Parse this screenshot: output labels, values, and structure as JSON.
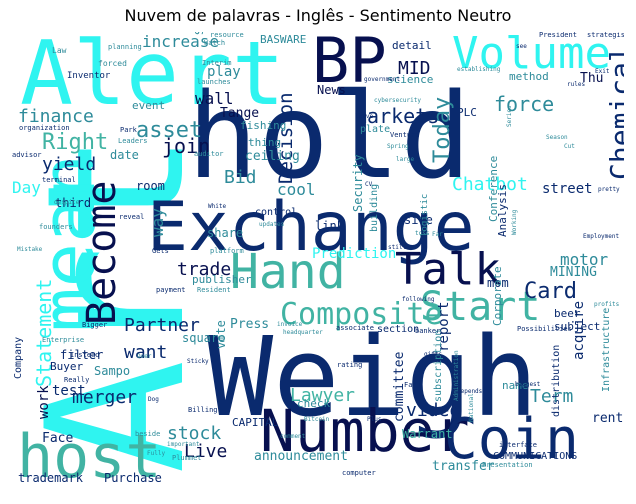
{
  "title": "Nuvem de palavras - Inglês - Sentimento Neutro",
  "palette": {
    "navy": "#0a2a6e",
    "dark": "#07104f",
    "teal": "#41b3a3",
    "cyan": "#2ff4f0",
    "sea": "#2e8b9a"
  },
  "words": [
    {
      "text": "Art",
      "color": "#2ff4f0"
    },
    {
      "text": "hold",
      "color": "#0a2a6e"
    },
    {
      "text": "Exchange",
      "color": "#0a2a6e"
    },
    {
      "text": "Weigh",
      "color": "#0a2a6e"
    },
    {
      "text": "Alert",
      "color": "#2ff4f0"
    },
    {
      "text": "BP",
      "color": "#07104f"
    },
    {
      "text": "Volume",
      "color": "#2ff4f0"
    },
    {
      "text": "mean",
      "color": "#2ff4f0"
    },
    {
      "text": "Hand",
      "color": "#41b3a3"
    },
    {
      "text": "Talk",
      "color": "#07104f"
    },
    {
      "text": "Number",
      "color": "#07104f"
    },
    {
      "text": "Coin",
      "color": "#0a2a6e"
    },
    {
      "text": "host",
      "color": "#41b3a3"
    },
    {
      "text": "Become",
      "color": "#07104f"
    },
    {
      "text": "Start",
      "color": "#41b3a3"
    },
    {
      "text": "Composite",
      "color": "#41b3a3"
    },
    {
      "text": "Chemical",
      "color": "#0a2a6e"
    },
    {
      "text": "Today",
      "color": "#2e8b9a"
    },
    {
      "text": "Chatbot",
      "color": "#2ff4f0"
    },
    {
      "text": "markets",
      "color": "#0a2a6e"
    },
    {
      "text": "force",
      "color": "#2e8b9a"
    },
    {
      "text": "finance",
      "color": "#2e8b9a"
    },
    {
      "text": "asset",
      "color": "#2e8b9a"
    },
    {
      "text": "Right",
      "color": "#41b3a3"
    },
    {
      "text": "yield",
      "color": "#0a2a6e"
    },
    {
      "text": "join",
      "color": "#07104f"
    },
    {
      "text": "Decision",
      "color": "#0a2a6e"
    },
    {
      "text": "Bid",
      "color": "#2e8b9a"
    },
    {
      "text": "Partner",
      "color": "#0a2a6e"
    },
    {
      "text": "Card",
      "color": "#0a2a6e"
    },
    {
      "text": "Statement",
      "color": "#2ff4f0"
    },
    {
      "text": "trade",
      "color": "#07104f"
    },
    {
      "text": "want",
      "color": "#0a2a6e"
    },
    {
      "text": "merger",
      "color": "#0a2a6e"
    },
    {
      "text": "stock",
      "color": "#2e8b9a"
    },
    {
      "text": "Live",
      "color": "#07104f"
    },
    {
      "text": "Lawyer",
      "color": "#41b3a3"
    },
    {
      "text": "video",
      "color": "#0a2a6e"
    },
    {
      "text": "Term",
      "color": "#2e8b9a"
    },
    {
      "text": "increase",
      "color": "#2e8b9a"
    },
    {
      "text": "MID",
      "color": "#07104f"
    },
    {
      "text": "wall",
      "color": "#07104f"
    },
    {
      "text": "play",
      "color": "#2e8b9a"
    },
    {
      "text": "Day",
      "color": "#2ff4f0"
    },
    {
      "text": "cool",
      "color": "#2e8b9a"
    },
    {
      "text": "street",
      "color": "#0a2a6e"
    },
    {
      "text": "way",
      "color": "#2e8b9a"
    },
    {
      "text": "motor",
      "color": "#2e8b9a"
    },
    {
      "text": "Prediction",
      "color": "#2ff4f0"
    },
    {
      "text": "Warrant",
      "color": "#41b3a3"
    },
    {
      "text": "announcement",
      "color": "#2e8b9a"
    },
    {
      "text": "transfer",
      "color": "#2e8b9a"
    },
    {
      "text": "ceiling",
      "color": "#2e8b9a"
    },
    {
      "text": "News",
      "color": "#07104f"
    },
    {
      "text": "Press",
      "color": "#2e8b9a"
    },
    {
      "text": "trademark",
      "color": "#0a2a6e"
    },
    {
      "text": "Purchase",
      "color": "#0a2a6e"
    },
    {
      "text": "COMMUNICATIONS",
      "color": "#0a2a6e"
    },
    {
      "text": "work",
      "color": "#07104f"
    },
    {
      "text": "test",
      "color": "#0a2a6e"
    },
    {
      "text": "Face",
      "color": "#0a2a6e"
    },
    {
      "text": "report",
      "color": "#0a2a6e"
    },
    {
      "text": "acquire",
      "color": "#0a2a6e"
    },
    {
      "text": "rental",
      "color": "#0a2a6e"
    },
    {
      "text": "committee",
      "color": "#0a2a6e"
    },
    {
      "text": "CAPITAL",
      "color": "#0a2a6e"
    },
    {
      "text": "Sampo",
      "color": "#2e8b9a"
    },
    {
      "text": "square",
      "color": "#2e8b9a"
    },
    {
      "text": "BASWARE",
      "color": "#2e8b9a"
    },
    {
      "text": "Stockmann",
      "color": "#2e8b9a"
    },
    {
      "text": "Tange",
      "color": "#07104f"
    },
    {
      "text": "MINING",
      "color": "#2e8b9a"
    },
    {
      "text": "mom",
      "color": "#0a2a6e"
    },
    {
      "text": "link",
      "color": "#0a2a6e"
    },
    {
      "text": "site",
      "color": "#0a2a6e"
    },
    {
      "text": "share",
      "color": "#2e8b9a"
    },
    {
      "text": "publisher",
      "color": "#2e8b9a"
    },
    {
      "text": "room",
      "color": "#0a2a6e"
    },
    {
      "text": "third",
      "color": "#0a2a6e"
    },
    {
      "text": "event",
      "color": "#2e8b9a"
    },
    {
      "text": "date",
      "color": "#2e8b9a"
    },
    {
      "text": "Buyer",
      "color": "#0a2a6e"
    },
    {
      "text": "Company",
      "color": "#0a2a6e"
    },
    {
      "text": "filter",
      "color": "#0a2a6e"
    },
    {
      "text": "beer",
      "color": "#0a2a6e"
    },
    {
      "text": "subject",
      "color": "#0a2a6e"
    },
    {
      "text": "section",
      "color": "#0a2a6e"
    },
    {
      "text": "vote",
      "color": "#2e8b9a"
    },
    {
      "text": "check",
      "color": "#2e8b9a"
    },
    {
      "text": "name",
      "color": "#2e8b9a"
    },
    {
      "text": "Corporate",
      "color": "#2e8b9a"
    },
    {
      "text": "Conference",
      "color": "#2e8b9a"
    },
    {
      "text": "Analysis",
      "color": "#0a2a6e"
    },
    {
      "text": "Security",
      "color": "#2e8b9a"
    },
    {
      "text": "method",
      "color": "#2e8b9a"
    },
    {
      "text": "Thu",
      "color": "#07104f"
    },
    {
      "text": "PLC",
      "color": "#0a2a6e"
    },
    {
      "text": "science",
      "color": "#2e8b9a"
    },
    {
      "text": "detail",
      "color": "#0a2a6e"
    },
    {
      "text": "plate",
      "color": "#2e8b9a"
    },
    {
      "text": "building",
      "color": "#2e8b9a"
    },
    {
      "text": "control",
      "color": "#0a2a6e"
    },
    {
      "text": "thing",
      "color": "#2e8b9a"
    },
    {
      "text": "fishing",
      "color": "#2e8b9a"
    },
    {
      "text": "subscription",
      "color": "#2e8b9a"
    },
    {
      "text": "distribution",
      "color": "#0a2a6e"
    },
    {
      "text": "Infrastructure",
      "color": "#2e8b9a"
    },
    {
      "text": "Inventor",
      "color": "#0a2a6e"
    },
    {
      "text": "Law",
      "color": "#2e8b9a"
    },
    {
      "text": "forced",
      "color": "#2e8b9a"
    },
    {
      "text": "organization",
      "color": "#0a2a6e"
    },
    {
      "text": "Park",
      "color": "#0a2a6e"
    },
    {
      "text": "advisor",
      "color": "#0a2a6e"
    },
    {
      "text": "Leaders",
      "color": "#2e8b9a"
    },
    {
      "text": "auditor",
      "color": "#2e8b9a"
    },
    {
      "text": "resource",
      "color": "#2e8b9a"
    },
    {
      "text": "Watch",
      "color": "#2e8b9a"
    },
    {
      "text": "government",
      "color": "#0a2a6e"
    },
    {
      "text": "cybersecurity",
      "color": "#2e8b9a"
    },
    {
      "text": "leave",
      "color": "#0a2a6e"
    },
    {
      "text": "Venture",
      "color": "#0a2a6e"
    },
    {
      "text": "Spring",
      "color": "#2e8b9a"
    },
    {
      "text": "large",
      "color": "#2e8b9a"
    },
    {
      "text": "CV",
      "color": "#0a2a6e"
    },
    {
      "text": "logistic",
      "color": "#2e8b9a"
    },
    {
      "text": "still",
      "color": "#0a2a6e"
    },
    {
      "text": "toss",
      "color": "#2e8b9a"
    },
    {
      "text": "Far",
      "color": "#2e8b9a"
    },
    {
      "text": "following",
      "color": "#0a2a6e"
    },
    {
      "text": "banker",
      "color": "#0a2a6e"
    },
    {
      "text": "associate",
      "color": "#0a2a6e"
    },
    {
      "text": "Possibilities",
      "color": "#0a2a6e"
    },
    {
      "text": "profits",
      "color": "#2e8b9a"
    },
    {
      "text": "Employment",
      "color": "#0a2a6e"
    },
    {
      "text": "Working",
      "color": "#2e8b9a"
    },
    {
      "text": "pretty",
      "color": "#0a2a6e"
    },
    {
      "text": "President",
      "color": "#0a2a6e"
    },
    {
      "text": "strategist",
      "color": "#0a2a6e"
    },
    {
      "text": "Exit",
      "color": "#0a2a6e"
    },
    {
      "text": "see",
      "color": "#0a2a6e"
    },
    {
      "text": "rules",
      "color": "#0a2a6e"
    },
    {
      "text": "Depends",
      "color": "#0a2a6e"
    },
    {
      "text": "National",
      "color": "#2e8b9a"
    },
    {
      "text": "Administration",
      "color": "#2e8b9a"
    },
    {
      "text": "biggest",
      "color": "#0a2a6e"
    },
    {
      "text": "interface",
      "color": "#0a2a6e"
    },
    {
      "text": "Presentation",
      "color": "#2e8b9a"
    },
    {
      "text": "computer",
      "color": "#0a2a6e"
    },
    {
      "text": "Plus",
      "color": "#0a2a6e"
    },
    {
      "text": "comment",
      "color": "#2e8b9a"
    },
    {
      "text": "rating",
      "color": "#0a2a6e"
    },
    {
      "text": "Bitcoin",
      "color": "#2e8b9a"
    },
    {
      "text": "Farm",
      "color": "#0a2a6e"
    },
    {
      "text": "gifts",
      "color": "#0a2a6e"
    },
    {
      "text": "headquarter",
      "color": "#2e8b9a"
    },
    {
      "text": "invoice",
      "color": "#2e8b9a"
    },
    {
      "text": "Resident",
      "color": "#2e8b9a"
    },
    {
      "text": "payment",
      "color": "#0a2a6e"
    },
    {
      "text": "Gets",
      "color": "#0a2a6e"
    },
    {
      "text": "platform",
      "color": "#2e8b9a"
    },
    {
      "text": "Interim",
      "color": "#2e8b9a"
    },
    {
      "text": "White",
      "color": "#0a2a6e"
    },
    {
      "text": "updates",
      "color": "#2e8b9a"
    },
    {
      "text": "reveal",
      "color": "#0a2a6e"
    },
    {
      "text": "founders",
      "color": "#2e8b9a"
    },
    {
      "text": "Mistake",
      "color": "#2e8b9a"
    },
    {
      "text": "despite",
      "color": "#2e8b9a"
    },
    {
      "text": "terminal",
      "color": "#0a2a6e"
    },
    {
      "text": "Bigger",
      "color": "#0a2a6e"
    },
    {
      "text": "Instead",
      "color": "#0a2a6e"
    },
    {
      "text": "Enterprise",
      "color": "#2e8b9a"
    },
    {
      "text": "Really",
      "color": "#0a2a6e"
    },
    {
      "text": "Over",
      "color": "#2e8b9a"
    },
    {
      "text": "Dog",
      "color": "#0a2a6e"
    },
    {
      "text": "Billing",
      "color": "#0a2a6e"
    },
    {
      "text": "beside",
      "color": "#2e8b9a"
    },
    {
      "text": "important",
      "color": "#2e8b9a"
    },
    {
      "text": "Plummet",
      "color": "#2e8b9a"
    },
    {
      "text": "Fully",
      "color": "#2e8b9a"
    },
    {
      "text": "Sticky",
      "color": "#0a2a6e"
    },
    {
      "text": "launches",
      "color": "#2e8b9a"
    },
    {
      "text": "planning",
      "color": "#2e8b9a"
    },
    {
      "text": "Cut",
      "color": "#2e8b9a"
    },
    {
      "text": "Season",
      "color": "#2e8b9a"
    },
    {
      "text": "Series",
      "color": "#2e8b9a"
    },
    {
      "text": "establishing",
      "color": "#2e8b9a"
    }
  ]
}
